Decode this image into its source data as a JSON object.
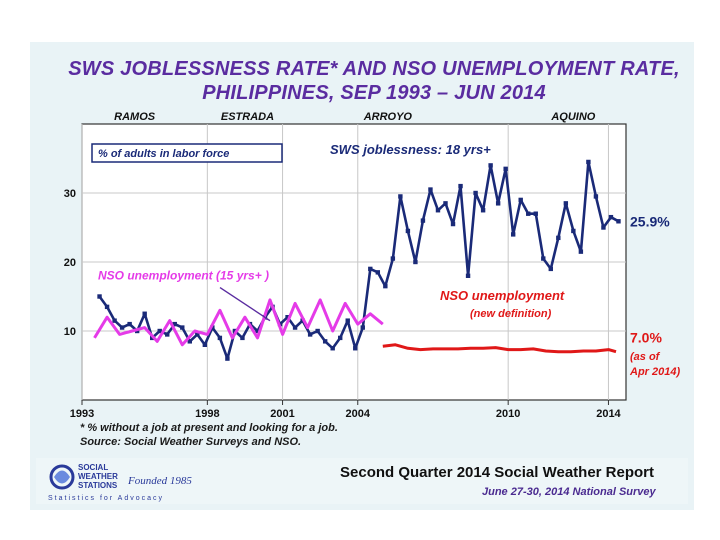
{
  "title_line1": "SWS JOBLESSNESS RATE* AND NSO UNEMPLOYMENT RATE,",
  "title_line2": "PHILIPPINES, SEP 1993 – JUN 2014",
  "footnote1": "* % without a job at present and looking for a job.",
  "footnote2": "Source: Social Weather Surveys and NSO.",
  "report_title": "Second Quarter 2014 Social Weather Report",
  "report_subtitle": "June 27-30, 2014 National Survey",
  "logo": {
    "line1": "SOCIAL",
    "line2": "WEATHER",
    "line3": "STATIONS",
    "founded": "Founded 1985",
    "tagline": "Statistics for Advocacy"
  },
  "colors": {
    "sws": "#1a2a78",
    "nso_old": "#e53be8",
    "nso_new": "#e01818",
    "accent": "#5a2ca0",
    "panel": "#e9f3f6",
    "plot_bg": "#ffffff"
  },
  "chart_data": {
    "type": "line",
    "xlim": [
      1993,
      2014.7
    ],
    "ylim": [
      0,
      40
    ],
    "yticks": [
      10,
      20,
      30
    ],
    "xticks": [
      1993,
      1998,
      2001,
      2004,
      2010,
      2014
    ],
    "grid": true,
    "presidents": [
      {
        "label": "RAMOS",
        "x": 1995.1
      },
      {
        "label": "ESTRADA",
        "x": 1999.6
      },
      {
        "label": "ARROYO",
        "x": 2005.2
      },
      {
        "label": "AQUINO",
        "x": 2012.6
      }
    ],
    "annotations": {
      "box_note": "% of adults in labor force",
      "sws_label": "SWS joblessness: 18 yrs+",
      "sws_end_value": "25.9%",
      "nso_old_label": "NSO unemployment (15 yrs+ )",
      "nso_new_label": "NSO unemployment",
      "nso_new_sub": "(new definition)",
      "nso_end_value": "7.0%",
      "nso_end_note1": "(as of",
      "nso_end_note2": "Apr 2014)"
    },
    "series": [
      {
        "key": "sws",
        "x": [
          1993.7,
          1994.0,
          1994.3,
          1994.6,
          1994.9,
          1995.2,
          1995.5,
          1995.8,
          1996.1,
          1996.4,
          1996.7,
          1997.0,
          1997.3,
          1997.6,
          1997.9,
          1998.2,
          1998.5,
          1998.8,
          1999.1,
          1999.4,
          1999.7,
          2000.0,
          2000.3,
          2000.6,
          2000.9,
          2001.2,
          2001.5,
          2001.8,
          2002.1,
          2002.4,
          2002.7,
          2003.0,
          2003.3,
          2003.6,
          2003.9,
          2004.2,
          2004.5,
          2004.8,
          2005.1,
          2005.4,
          2005.7,
          2006.0,
          2006.3,
          2006.6,
          2006.9,
          2007.2,
          2007.5,
          2007.8,
          2008.1,
          2008.4,
          2008.7,
          2009.0,
          2009.3,
          2009.6,
          2009.9,
          2010.2,
          2010.5,
          2010.8,
          2011.1,
          2011.4,
          2011.7,
          2012.0,
          2012.3,
          2012.6,
          2012.9,
          2013.2,
          2013.5,
          2013.8,
          2014.1,
          2014.4
        ],
        "values": [
          15.0,
          13.5,
          11.5,
          10.5,
          11.0,
          10.0,
          12.5,
          9.0,
          10.0,
          9.5,
          11.0,
          10.5,
          8.5,
          9.5,
          8.0,
          10.5,
          9.0,
          6.0,
          10.0,
          9.0,
          11.0,
          10.0,
          12.0,
          13.5,
          11.0,
          12.0,
          10.5,
          11.5,
          9.5,
          10.0,
          8.5,
          7.5,
          9.0,
          11.5,
          7.5,
          10.5,
          19.0,
          18.5,
          16.5,
          20.5,
          29.5,
          24.5,
          20.0,
          26.0,
          30.5,
          27.5,
          28.5,
          25.5,
          31.0,
          18.0,
          30.0,
          27.5,
          34.0,
          28.5,
          33.5,
          24.0,
          29.0,
          27.0,
          27.0,
          20.5,
          19.0,
          23.5,
          28.5,
          24.5,
          21.5,
          34.5,
          29.5,
          25.0,
          26.5,
          25.9
        ]
      },
      {
        "key": "nso_old",
        "x": [
          1993.5,
          1994.0,
          1994.5,
          1995.0,
          1995.5,
          1996.0,
          1996.5,
          1997.0,
          1997.5,
          1998.0,
          1998.5,
          1999.0,
          1999.5,
          2000.0,
          2000.5,
          2001.0,
          2001.5,
          2002.0,
          2002.5,
          2003.0,
          2003.5,
          2004.0,
          2004.5,
          2005.0
        ],
        "values": [
          9.0,
          12.0,
          9.5,
          10.0,
          10.5,
          8.5,
          11.5,
          8.0,
          10.0,
          9.5,
          13.0,
          9.0,
          12.0,
          9.0,
          14.5,
          9.5,
          14.0,
          10.5,
          14.5,
          10.0,
          14.0,
          11.0,
          12.5,
          11.0
        ]
      },
      {
        "key": "nso_new",
        "x": [
          2005.0,
          2005.5,
          2006.0,
          2006.5,
          2007.0,
          2007.5,
          2008.0,
          2008.5,
          2009.0,
          2009.5,
          2010.0,
          2010.5,
          2011.0,
          2011.5,
          2012.0,
          2012.5,
          2013.0,
          2013.5,
          2014.0,
          2014.3
        ],
        "values": [
          7.8,
          8.0,
          7.5,
          7.3,
          7.4,
          7.4,
          7.4,
          7.5,
          7.5,
          7.6,
          7.3,
          7.3,
          7.4,
          7.1,
          7.0,
          7.0,
          7.1,
          7.1,
          7.3,
          7.0
        ]
      }
    ]
  }
}
